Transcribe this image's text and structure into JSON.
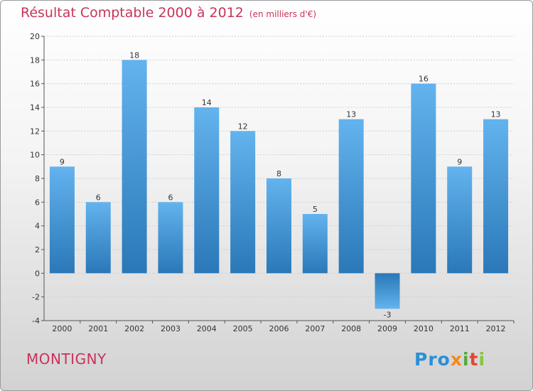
{
  "chart_data": {
    "type": "bar",
    "title": "Résultat Comptable 2000 à 2012",
    "subtitle": "(en milliers d'€)",
    "categories": [
      "2000",
      "2001",
      "2002",
      "2003",
      "2004",
      "2005",
      "2006",
      "2007",
      "2008",
      "2009",
      "2010",
      "2011",
      "2012"
    ],
    "values": [
      9,
      6,
      18,
      6,
      14,
      12,
      8,
      5,
      13,
      -3,
      16,
      9,
      13
    ],
    "ylim": [
      -4,
      20
    ],
    "yticks": [
      -4,
      -2,
      0,
      2,
      4,
      6,
      8,
      10,
      12,
      14,
      16,
      18,
      20
    ],
    "xlabel": "",
    "ylabel": "",
    "grid": true
  },
  "commune": "MONTIGNY",
  "logo": {
    "p1": "Pro",
    "p2": "x",
    "p3": "i",
    "p4": "t",
    "p5": "i"
  },
  "colors": {
    "bar_top": "#63b3ee",
    "bar_bottom": "#2a78b8",
    "accent": "#c8345a"
  }
}
